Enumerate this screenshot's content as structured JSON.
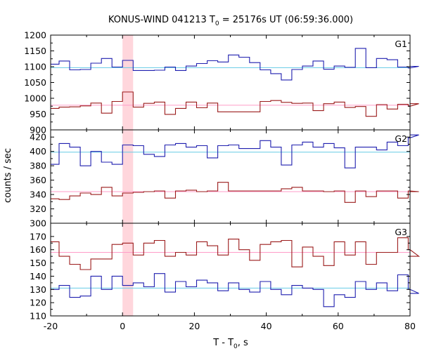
{
  "chart_data": {
    "type": "line",
    "title": "KONUS-WIND 041213 T",
    "title_sub": "0",
    "title_rest": " = 25176s UT (06:59:36.000)",
    "ylabel": "counts / sec",
    "xlabel_main": "T - T",
    "xlabel_sub": "0",
    "xlabel_tail": ", s",
    "xlim": [
      -20,
      80
    ],
    "xticks": [
      -20,
      0,
      20,
      40,
      60,
      80
    ],
    "highlight": {
      "x0": 0,
      "x1": 2.944,
      "color": "#ffc8d0"
    },
    "colors": {
      "blue": "#1f1faf",
      "red": "#9b1b1b",
      "bg_blue": "#66cce6",
      "bg_pink": "#ff9cc8"
    },
    "bin_width": 2.944,
    "x_start": -20.6,
    "panels": [
      {
        "label": "G1",
        "ylim": [
          900,
          1200
        ],
        "yticks": [
          900,
          950,
          1000,
          1050,
          1100,
          1150,
          1200
        ],
        "ytick_labels": [
          "900",
          "950",
          "1000",
          "1050",
          "1100",
          "1150",
          "1200"
        ],
        "series": [
          {
            "color": "blue",
            "values": [
              1108,
              1118,
              1090,
              1091,
              1111,
              1126,
              1099,
              1120,
              1088,
              1088,
              1089,
              1099,
              1088,
              1102,
              1110,
              1119,
              1115,
              1137,
              1130,
              1113,
              1090,
              1078,
              1058,
              1091,
              1102,
              1118,
              1092,
              1102,
              1098,
              1158,
              1097,
              1126,
              1122,
              1099,
              1096,
              1101
            ]
          },
          {
            "color": "red",
            "values": [
              968,
              972,
              973,
              976,
              985,
              953,
              990,
              1020,
              972,
              984,
              988,
              949,
              968,
              988,
              970,
              985,
              957,
              957,
              957,
              957,
              990,
              993,
              987,
              984,
              985,
              961,
              983,
              988,
              971,
              974,
              943,
              980,
              966,
              981,
              975,
              983
            ]
          }
        ],
        "backgrounds": [
          {
            "color": "bg_blue",
            "value": 1097
          },
          {
            "color": "bg_pink",
            "value": 978
          }
        ]
      },
      {
        "label": "G2",
        "ylim": [
          300,
          430
        ],
        "yticks": [
          300,
          320,
          340,
          360,
          380,
          400,
          420
        ],
        "ytick_labels": [
          "300",
          "320",
          "340",
          "360",
          "380",
          "400",
          "420"
        ],
        "series": [
          {
            "color": "blue",
            "values": [
              382,
              411,
              406,
              380,
              400,
              385,
              382,
              409,
              408,
              396,
              393,
              409,
              411,
              406,
              408,
              391,
              408,
              409,
              404,
              404,
              415,
              406,
              381,
              409,
              413,
              406,
              411,
              405,
              377,
              406,
              406,
              402,
              413,
              408,
              419,
              423
            ]
          },
          {
            "color": "red",
            "values": [
              334,
              333,
              338,
              342,
              340,
              350,
              338,
              342,
              343,
              344,
              345,
              335,
              345,
              346,
              344,
              345,
              357,
              345,
              345,
              345,
              345,
              345,
              348,
              350,
              345,
              345,
              344,
              345,
              329,
              345,
              337,
              345,
              345,
              335,
              345,
              344
            ]
          }
        ],
        "backgrounds": [
          {
            "color": "bg_blue",
            "value": 399
          },
          {
            "color": "bg_pink",
            "value": 344
          }
        ]
      },
      {
        "label": "G3",
        "ylim": [
          110,
          180
        ],
        "yticks": [
          110,
          120,
          130,
          140,
          150,
          160,
          170
        ],
        "ytick_labels": [
          "110",
          "120",
          "130",
          "140",
          "150",
          "160",
          "170"
        ],
        "series": [
          {
            "color": "red",
            "values": [
              166,
              155,
              149,
              145,
              153,
              153,
              164,
              165,
              156,
              165,
              167,
              155,
              158,
              156,
              166,
              163,
              156,
              168,
              160,
              152,
              164,
              166,
              167,
              147,
              162,
              155,
              148,
              166,
              156,
              166,
              149,
              158,
              158,
              169,
              160,
              155
            ]
          },
          {
            "color": "blue",
            "values": [
              130,
              133,
              124,
              125,
              140,
              130,
              140,
              133,
              135,
              132,
              142,
              128,
              136,
              132,
              137,
              135,
              129,
              135,
              130,
              128,
              136,
              130,
              126,
              133,
              131,
              130,
              117,
              126,
              124,
              136,
              130,
              135,
              129,
              141,
              130,
              127
            ]
          }
        ],
        "backgrounds": [
          {
            "color": "bg_pink",
            "value": 158
          },
          {
            "color": "bg_blue",
            "value": 131
          }
        ]
      }
    ]
  }
}
